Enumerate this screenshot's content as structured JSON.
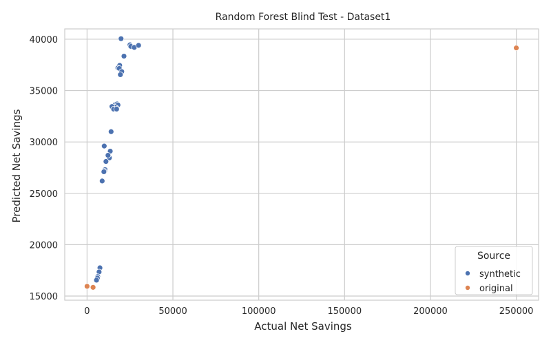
{
  "chart_data": {
    "type": "scatter",
    "title": "Random Forest Blind Test - Dataset1",
    "xlabel": "Actual Net Savings",
    "ylabel": "Predicted Net Savings",
    "xlim": [
      -13000,
      263000
    ],
    "ylim": [
      14600,
      41000
    ],
    "xticks": [
      0,
      50000,
      100000,
      150000,
      200000,
      250000
    ],
    "yticks": [
      15000,
      20000,
      25000,
      30000,
      35000,
      40000
    ],
    "grid": true,
    "legend": {
      "title": "Source",
      "placement": "lower-right"
    },
    "colors": {
      "synthetic": "#4c72b0",
      "original": "#dd8452",
      "grid": "#cccccc",
      "axis": "#cccccc"
    },
    "series": [
      {
        "name": "synthetic",
        "points": [
          [
            19800,
            40050
          ],
          [
            25000,
            39450
          ],
          [
            25500,
            39300
          ],
          [
            27500,
            39200
          ],
          [
            30000,
            39400
          ],
          [
            21500,
            38350
          ],
          [
            19000,
            37450
          ],
          [
            18000,
            37200
          ],
          [
            18800,
            37150
          ],
          [
            20200,
            36850
          ],
          [
            19400,
            36550
          ],
          [
            16500,
            33650
          ],
          [
            17500,
            33700
          ],
          [
            18000,
            33600
          ],
          [
            17000,
            33300
          ],
          [
            16000,
            33400
          ],
          [
            14500,
            33450
          ],
          [
            15500,
            33200
          ],
          [
            17200,
            33200
          ],
          [
            14000,
            31000
          ],
          [
            10000,
            29600
          ],
          [
            13500,
            29100
          ],
          [
            13000,
            28450
          ],
          [
            12200,
            28700
          ],
          [
            11000,
            28100
          ],
          [
            10500,
            27300
          ],
          [
            10200,
            27150
          ],
          [
            9800,
            27100
          ],
          [
            8800,
            26200
          ],
          [
            7500,
            17750
          ],
          [
            7000,
            17350
          ],
          [
            6200,
            16900
          ],
          [
            6000,
            16750
          ],
          [
            5500,
            16550
          ]
        ]
      },
      {
        "name": "original",
        "points": [
          [
            250000,
            39150
          ],
          [
            0,
            15950
          ],
          [
            3500,
            15850
          ]
        ]
      }
    ]
  }
}
